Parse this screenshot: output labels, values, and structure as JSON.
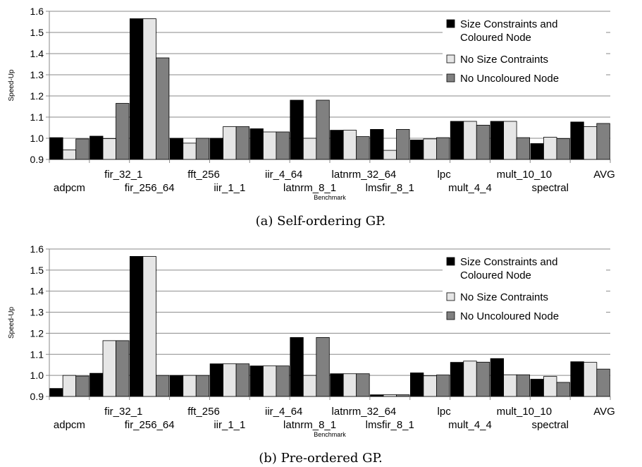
{
  "chart_data": [
    {
      "type": "bar",
      "caption": "(a) Self-ordering GP.",
      "xlabel": "Benchmark",
      "ylabel": "Speed-Up",
      "ylim": [
        0.9,
        1.6
      ],
      "yticks": [
        "0.9",
        "1.0",
        "1.1",
        "1.2",
        "1.3",
        "1.4",
        "1.5",
        "1.6"
      ],
      "grid": true,
      "legend_position": "top-right",
      "categories": [
        "adpcm",
        "fir_32_1",
        "fir_256_64",
        "fft_256",
        "iir_1_1",
        "iir_4_64",
        "latnrm_8_1",
        "latnrm_32_64",
        "lmsfir_8_1",
        "lpc",
        "mult_4_4",
        "mult_10_10",
        "spectral",
        "AVG"
      ],
      "series": [
        {
          "name": "Size Constraints and Coloured Node",
          "color": "#000000",
          "values": [
            1.003,
            1.01,
            1.565,
            1.0,
            1.0,
            1.045,
            1.18,
            1.038,
            1.042,
            0.992,
            1.08,
            1.08,
            0.975,
            1.077
          ]
        },
        {
          "name": "No Size Contraints",
          "color": "#e6e6e6",
          "values": [
            0.945,
            0.998,
            1.565,
            0.977,
            1.055,
            1.03,
            1.0,
            1.038,
            0.943,
            0.997,
            1.08,
            1.08,
            1.005,
            1.055
          ]
        },
        {
          "name": "No Uncoloured Node",
          "color": "#808080",
          "values": [
            0.997,
            1.165,
            1.38,
            1.0,
            1.055,
            1.03,
            1.18,
            1.008,
            1.042,
            1.003,
            1.062,
            1.003,
            0.998,
            1.07
          ]
        }
      ]
    },
    {
      "type": "bar",
      "caption": "(b) Pre-ordered GP.",
      "xlabel": "Benchmark",
      "ylabel": "Speed-Up",
      "ylim": [
        0.9,
        1.6
      ],
      "yticks": [
        "0.9",
        "1.0",
        "1.1",
        "1.2",
        "1.3",
        "1.4",
        "1.5",
        "1.6"
      ],
      "grid": true,
      "legend_position": "top-right",
      "categories": [
        "adpcm",
        "fir_32_1",
        "fir_256_64",
        "fft_256",
        "iir_1_1",
        "iir_4_64",
        "latnrm_8_1",
        "latnrm_32_64",
        "lmsfir_8_1",
        "lpc",
        "mult_4_4",
        "mult_10_10",
        "spectral",
        "AVG"
      ],
      "series": [
        {
          "name": "Size Constraints and Coloured Node",
          "color": "#000000",
          "values": [
            0.938,
            1.01,
            1.565,
            1.0,
            1.055,
            1.045,
            1.18,
            1.008,
            0.908,
            1.012,
            1.062,
            1.08,
            0.982,
            1.065
          ]
        },
        {
          "name": "No Size Contraints",
          "color": "#e6e6e6",
          "values": [
            1.0,
            1.165,
            1.565,
            1.0,
            1.055,
            1.045,
            1.0,
            1.008,
            0.908,
            0.998,
            1.068,
            1.003,
            0.995,
            1.062
          ]
        },
        {
          "name": "No Uncoloured Node",
          "color": "#808080",
          "values": [
            0.997,
            1.165,
            1.0,
            1.0,
            1.055,
            1.045,
            1.18,
            1.008,
            0.908,
            1.002,
            1.063,
            1.003,
            0.967,
            1.03
          ]
        }
      ]
    }
  ]
}
